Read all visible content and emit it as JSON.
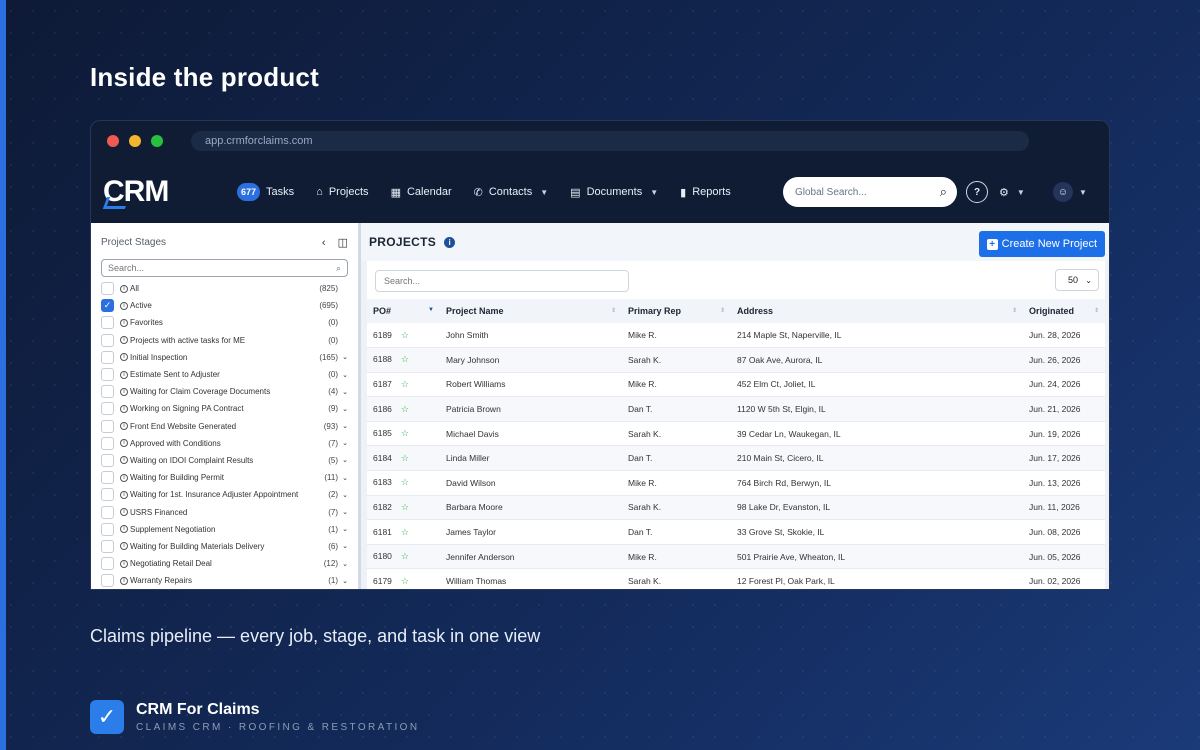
{
  "headline": "Inside the product",
  "window": {
    "url": "app.crmforclaims.com"
  },
  "app": {
    "logo": "CRM",
    "nav": {
      "tasks_count": "677",
      "tasks": "Tasks",
      "projects": "Projects",
      "calendar": "Calendar",
      "contacts": "Contacts",
      "documents": "Documents",
      "reports": "Reports"
    },
    "global_search_placeholder": "Global Search..."
  },
  "stages_panel": {
    "title": "Project Stages",
    "search_placeholder": "Search...",
    "items": [
      {
        "label": "All",
        "count": "(825)",
        "checked": false,
        "chevron": false
      },
      {
        "label": "Active",
        "count": "(695)",
        "checked": true,
        "chevron": false
      },
      {
        "label": "Favorites",
        "count": "(0)",
        "checked": false,
        "chevron": false
      },
      {
        "label": "Projects with active tasks for ME",
        "count": "(0)",
        "checked": false,
        "chevron": false
      },
      {
        "label": "Initial Inspection",
        "count": "(165)",
        "checked": false,
        "chevron": true
      },
      {
        "label": "Estimate Sent to Adjuster",
        "count": "(0)",
        "checked": false,
        "chevron": true
      },
      {
        "label": "Waiting for Claim Coverage Documents",
        "count": "(4)",
        "checked": false,
        "chevron": true
      },
      {
        "label": "Working on Signing PA Contract",
        "count": "(9)",
        "checked": false,
        "chevron": true
      },
      {
        "label": "Front End Website Generated",
        "count": "(93)",
        "checked": false,
        "chevron": true
      },
      {
        "label": "Approved with Conditions",
        "count": "(7)",
        "checked": false,
        "chevron": true
      },
      {
        "label": "Waiting on IDOI Complaint Results",
        "count": "(5)",
        "checked": false,
        "chevron": true
      },
      {
        "label": "Waiting for Building Permit",
        "count": "(11)",
        "checked": false,
        "chevron": true
      },
      {
        "label": "Waiting for 1st. Insurance Adjuster Appointment",
        "count": "(2)",
        "checked": false,
        "chevron": true
      },
      {
        "label": "USRS Financed",
        "count": "(7)",
        "checked": false,
        "chevron": true
      },
      {
        "label": "Supplement Negotiation",
        "count": "(1)",
        "checked": false,
        "chevron": true
      },
      {
        "label": "Waiting for Building Materials Delivery",
        "count": "(6)",
        "checked": false,
        "chevron": true
      },
      {
        "label": "Negotiating Retail Deal",
        "count": "(12)",
        "checked": false,
        "chevron": true
      },
      {
        "label": "Warranty Repairs",
        "count": "(1)",
        "checked": false,
        "chevron": true
      }
    ]
  },
  "projects": {
    "title": "PROJECTS",
    "create_button": "Create New Project",
    "search_placeholder": "Search...",
    "page_size": "50",
    "columns": [
      "PO#",
      "Project Name",
      "Primary Rep",
      "Address",
      "Originated"
    ],
    "rows": [
      {
        "po": "6189",
        "name": "John Smith",
        "rep": "Mike R.",
        "address": "214 Maple St, Naperville, IL",
        "date": "Jun. 28, 2026"
      },
      {
        "po": "6188",
        "name": "Mary Johnson",
        "rep": "Sarah K.",
        "address": "87 Oak Ave, Aurora, IL",
        "date": "Jun. 26, 2026"
      },
      {
        "po": "6187",
        "name": "Robert Williams",
        "rep": "Mike R.",
        "address": "452 Elm Ct, Joliet, IL",
        "date": "Jun. 24, 2026"
      },
      {
        "po": "6186",
        "name": "Patricia Brown",
        "rep": "Dan T.",
        "address": "1120 W 5th St, Elgin, IL",
        "date": "Jun. 21, 2026"
      },
      {
        "po": "6185",
        "name": "Michael Davis",
        "rep": "Sarah K.",
        "address": "39 Cedar Ln, Waukegan, IL",
        "date": "Jun. 19, 2026"
      },
      {
        "po": "6184",
        "name": "Linda Miller",
        "rep": "Dan T.",
        "address": "210 Main St, Cicero, IL",
        "date": "Jun. 17, 2026"
      },
      {
        "po": "6183",
        "name": "David Wilson",
        "rep": "Mike R.",
        "address": "764 Birch Rd, Berwyn, IL",
        "date": "Jun. 13, 2026"
      },
      {
        "po": "6182",
        "name": "Barbara Moore",
        "rep": "Sarah K.",
        "address": "98 Lake Dr, Evanston, IL",
        "date": "Jun. 11, 2026"
      },
      {
        "po": "6181",
        "name": "James Taylor",
        "rep": "Dan T.",
        "address": "33 Grove St, Skokie, IL",
        "date": "Jun. 08, 2026"
      },
      {
        "po": "6180",
        "name": "Jennifer Anderson",
        "rep": "Mike R.",
        "address": "501 Prairie Ave, Wheaton, IL",
        "date": "Jun. 05, 2026"
      },
      {
        "po": "6179",
        "name": "William Thomas",
        "rep": "Sarah K.",
        "address": "12 Forest Pl, Oak Park, IL",
        "date": "Jun. 02, 2026"
      }
    ]
  },
  "caption": "Claims pipeline — every job, stage, and task in one view",
  "brand": {
    "name": "CRM For Claims",
    "tagline": "CLAIMS CRM · ROOFING & RESTORATION"
  },
  "colors": {
    "accent": "#2b6fe0",
    "background": "#0f1d3d",
    "star": "#2bb14a"
  }
}
